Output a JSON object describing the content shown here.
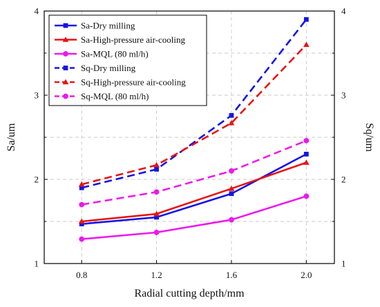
{
  "chart_data": {
    "type": "line",
    "x": [
      0.8,
      1.2,
      1.6,
      2.0
    ],
    "x_ticks": [
      "0.8",
      "1.2",
      "1.6",
      "2.0"
    ],
    "xlabel": "Radial cutting depth/mm",
    "ylabel_left": "Sa/um",
    "ylabel_right": "Sq/um",
    "ylim": [
      1,
      4
    ],
    "y_ticks": [
      "1",
      "2",
      "3",
      "4"
    ],
    "xlim": [
      0.6,
      2.15
    ],
    "grid": true,
    "legend_position": "top-left",
    "series": [
      {
        "name": "Sa-Dry milling",
        "values": [
          1.47,
          1.55,
          1.83,
          2.3
        ],
        "color": "#1414e6",
        "marker": "square",
        "dash": "solid"
      },
      {
        "name": "Sa-High-pressure air-cooling",
        "values": [
          1.5,
          1.59,
          1.89,
          2.2
        ],
        "color": "#e61414",
        "marker": "triangle",
        "dash": "solid"
      },
      {
        "name": "Sa-MQL (80 ml/h)",
        "values": [
          1.29,
          1.37,
          1.52,
          1.8
        ],
        "color": "#ee18ee",
        "marker": "circle",
        "dash": "solid"
      },
      {
        "name": "Sq-Dry milling",
        "values": [
          1.9,
          2.12,
          2.76,
          3.9
        ],
        "color": "#1414e6",
        "marker": "square",
        "dash": "dashed"
      },
      {
        "name": "Sq-High-pressure air-cooling",
        "values": [
          1.94,
          2.17,
          2.67,
          3.6
        ],
        "color": "#e61414",
        "marker": "triangle",
        "dash": "dashed"
      },
      {
        "name": "Sq-MQL (80 ml/h)",
        "values": [
          1.7,
          1.85,
          2.1,
          2.46
        ],
        "color": "#ee18ee",
        "marker": "circle",
        "dash": "dashed"
      }
    ]
  }
}
